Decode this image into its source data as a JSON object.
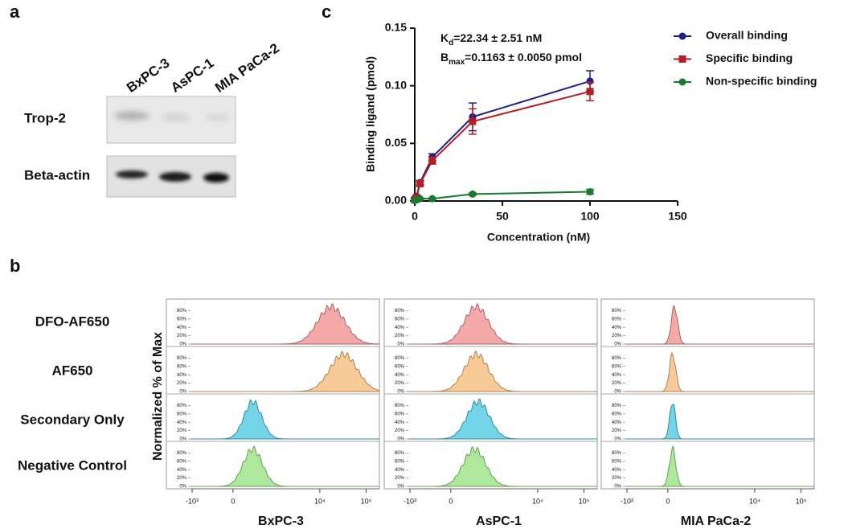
{
  "panel_a": {
    "letter": "a",
    "lanes": [
      "BxPC-3",
      "AsPC-1",
      "MIA PaCa-2"
    ],
    "rows": [
      "Trop-2",
      "Beta-actin"
    ]
  },
  "panel_b": {
    "letter": "b",
    "rows": [
      "DFO-AF650",
      "AF650",
      "Secondary Only",
      "Negative Control"
    ],
    "ylabel": "Normalized % of Max",
    "yticks": [
      {
        "value": 80,
        "label": "80%"
      },
      {
        "value": 60,
        "label": "60%"
      },
      {
        "value": 40,
        "label": "40%"
      },
      {
        "value": 20,
        "label": "20%"
      },
      {
        "value": 0,
        "label": "0%"
      }
    ],
    "xticks": [
      {
        "value": -1000,
        "label": "-10³"
      },
      {
        "value": 0,
        "label": "0"
      },
      {
        "value": 10000,
        "label": "10⁴"
      },
      {
        "value": 100000,
        "label": "10⁵"
      }
    ],
    "columns": [
      "BxPC-3",
      "AsPC-1",
      "MIA PaCa-2"
    ],
    "row_colors": [
      "#f08c8c",
      "#f5b874",
      "#45c6df",
      "#93e07c"
    ]
  },
  "chart_data": {
    "type": "line",
    "letter": "c",
    "xlabel": "Concentration (nM)",
    "ylabel": "Binding ligand (pmol)",
    "xlim": [
      0,
      150
    ],
    "xticks": [
      0,
      50,
      100,
      150
    ],
    "ylim": [
      0,
      0.15
    ],
    "yticks": [
      {
        "value": 0,
        "label": "0.00"
      },
      {
        "value": 0.05,
        "label": "0.05"
      },
      {
        "value": 0.1,
        "label": "0.10"
      },
      {
        "value": 0.15,
        "label": "0.15"
      }
    ],
    "annotation": {
      "kd_main": "K",
      "kd_sub": "d",
      "kd_text": "=22.34 ± 2.51 nM",
      "bmax_main": "B",
      "bmax_sub": "max",
      "bmax_text": "=0.1163 ± 0.0050 pmol"
    },
    "legend": "upper right",
    "x": [
      0,
      1,
      3,
      10,
      33,
      100
    ],
    "series": [
      {
        "name": "Overall binding",
        "color": "#1f1f86",
        "marker": "circle",
        "values": [
          0.002,
          0.004,
          0.016,
          0.038,
          0.073,
          0.104
        ],
        "errors": [
          0.001,
          0.001,
          0.002,
          0.003,
          0.012,
          0.009
        ]
      },
      {
        "name": "Specific binding",
        "color": "#b51e24",
        "marker": "square",
        "values": [
          0.001,
          0.003,
          0.015,
          0.035,
          0.069,
          0.095
        ],
        "errors": [
          0.001,
          0.001,
          0.002,
          0.003,
          0.011,
          0.008
        ]
      },
      {
        "name": "Non-specific binding",
        "color": "#177a2c",
        "marker": "circle",
        "values": [
          0.0005,
          0.001,
          0.002,
          0.002,
          0.006,
          0.008
        ],
        "errors": [
          0.0005,
          0.0005,
          0.0005,
          0.0005,
          0.001,
          0.002
        ]
      }
    ]
  }
}
